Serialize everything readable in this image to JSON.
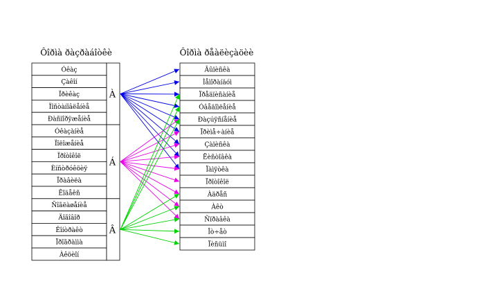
{
  "left_title": "Ôîðìà ðàçðàáîòêè",
  "right_title": "Ôîðìà ðåàëèçàöèè",
  "left_items": [
    "Óêàç",
    "Çàêîí",
    "Ïðèêàç",
    "Ïîñòàíîâëåíèå",
    "Ðàñïîðÿæåíèå",
    "Óêàçàíèå",
    "Ïîëîæåíèå",
    "Ïðîòîêîë",
    "Èíñòðóêöèÿ",
    "Ïðàâèëà",
    "Êîäåêñ",
    "Ñîãëàøåíèå",
    "Äîãîâîð",
    "Êîíòðàêò",
    "Ïðîãðàììà",
    "Àêöèîí"
  ],
  "groups": [
    {
      "label": "À",
      "color": "#0000e6"
    },
    {
      "label": "Á",
      "color": "#e600e6"
    },
    {
      "label": "Â",
      "color": "#00d200"
    }
  ],
  "right_items": [
    "Âûïèñêà",
    "Ìåìîðàíäóì",
    "Ïðåäïèñàíèå",
    "Óâåäîìëåíèå",
    "Ðàçúÿñíåíèå",
    "Ïðèìå÷àíèå",
    "Çàïèñêà",
    "Ëèñòîâêà",
    "Ïàìÿòêà",
    "Ïðîòîêîë",
    "Àäðåñ",
    "Àêò",
    "Ñïðàâêà",
    "Îò÷åò",
    "Ïèñüìî"
  ],
  "connections": [
    {
      "from": 0,
      "to": [
        0,
        1,
        2,
        3,
        4,
        5,
        6,
        7,
        8
      ]
    },
    {
      "from": 1,
      "to": [
        4,
        5,
        6,
        7,
        8,
        9,
        10,
        11,
        12
      ]
    },
    {
      "from": 2,
      "to": [
        2,
        3,
        4,
        10,
        11,
        12,
        13,
        14
      ]
    }
  ]
}
